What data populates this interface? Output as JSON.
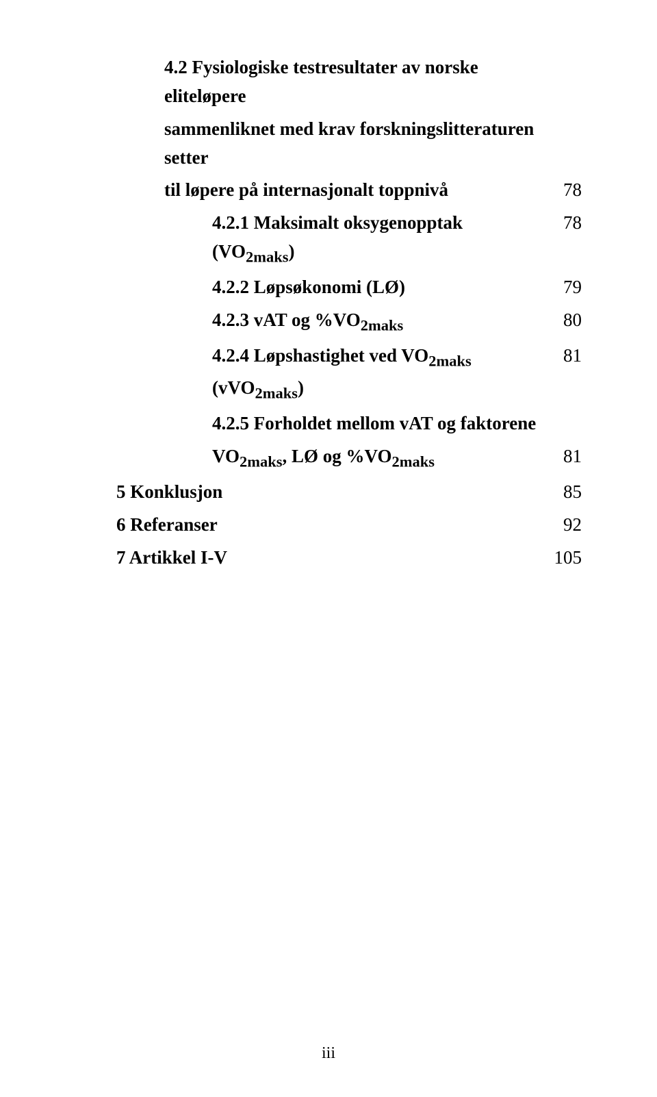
{
  "toc": {
    "lines": [
      {
        "text": "4.2 Fysiologiske testresultater av norske eliteløpere",
        "page": "",
        "bold": true,
        "indent": 1
      },
      {
        "text": "sammenliknet med krav forskningslitteraturen setter",
        "page": "",
        "bold": true,
        "indent": 1
      },
      {
        "text": "til løpere på internasjonalt toppnivå",
        "page": "78",
        "bold": true,
        "indent": 1
      },
      {
        "text": "4.2.1 Maksimalt oksygenopptak (VO",
        "sub": "2maks",
        "after": ")",
        "page": "78",
        "bold": true,
        "indent": 2
      },
      {
        "text": "4.2.2 Løpsøkonomi (LØ)",
        "page": "79",
        "bold": true,
        "indent": 2
      },
      {
        "text": "4.2.3 vAT og %VO",
        "sub": "2maks",
        "after": "",
        "page": "80",
        "bold": true,
        "indent": 2
      },
      {
        "text": "4.2.4 Løpshastighet ved VO",
        "sub": "2maks",
        "after": " (vVO",
        "sub2": "2maks",
        "after2": ")",
        "page": "81",
        "bold": true,
        "indent": 2
      },
      {
        "text": "4.2.5 Forholdet mellom vAT og faktorene",
        "page": "",
        "bold": true,
        "indent": 2
      },
      {
        "text": "VO",
        "sub": "2maks",
        "after": ", LØ og %VO",
        "sub2": "2maks",
        "after2": "",
        "page": "81",
        "bold": true,
        "indent": 2
      },
      {
        "text": "5 Konklusjon",
        "page": "85",
        "bold": true,
        "indent": 0
      },
      {
        "text": "6 Referanser",
        "page": "92",
        "bold": true,
        "indent": 0
      },
      {
        "text": "7 Artikkel I-V",
        "page": "105",
        "bold": true,
        "indent": 0
      }
    ]
  },
  "footer": "iii",
  "style": {
    "font_family": "Times New Roman",
    "font_size_pt": 20,
    "text_color": "#000000",
    "background_color": "#ffffff"
  }
}
